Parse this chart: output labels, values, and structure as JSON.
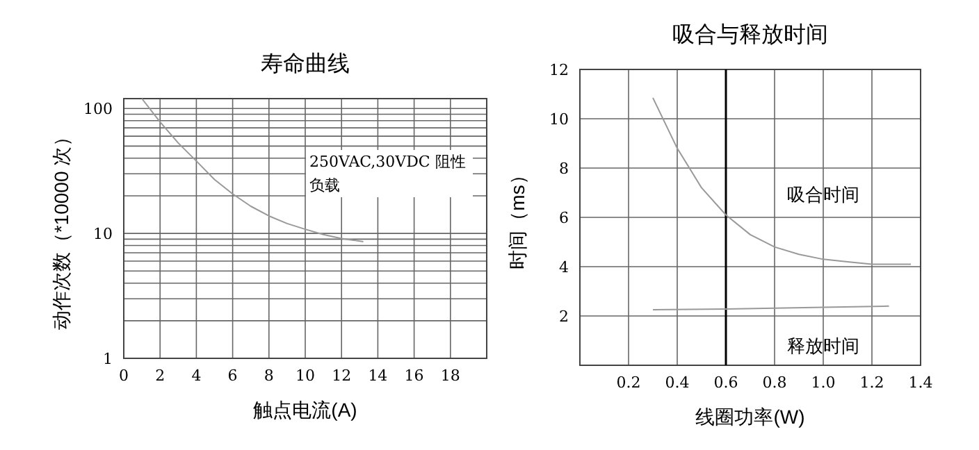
{
  "chart_data": [
    {
      "type": "line",
      "title": "寿命曲线",
      "xlabel": "触点电流(A)",
      "ylabel": "动作次数（*10000 次）",
      "log": "y",
      "grid": true,
      "xlim": [
        0,
        20
      ],
      "xticks": [
        0,
        2,
        4,
        6,
        8,
        10,
        12,
        14,
        16,
        18
      ],
      "ylim": [
        1,
        120
      ],
      "yticks": [
        1,
        10,
        100
      ],
      "annotations": [
        "250VAC,30VDC 阻性负载"
      ],
      "series": [
        {
          "color": "#999999",
          "x": [
            1,
            2,
            3,
            4,
            5,
            6,
            7,
            8,
            9,
            10,
            11,
            12,
            13.2
          ],
          "values": [
            120,
            78,
            53,
            38,
            27,
            20.7,
            16.5,
            13.8,
            12,
            10.8,
            9.8,
            9.1,
            8.6
          ]
        }
      ]
    },
    {
      "type": "line",
      "title": "吸合与释放时间",
      "xlabel": "线圈功率(W)",
      "ylabel": "时间（ms）",
      "grid": true,
      "xlim": [
        0,
        1.4
      ],
      "xticks": [
        {
          "value": 0.2,
          "label": "0.2"
        },
        {
          "value": 0.4,
          "label": "0.4"
        },
        {
          "value": 0.6,
          "label": "0.6"
        },
        {
          "value": 0.8,
          "label": "0.8"
        },
        {
          "value": 1.0,
          "label": "1.0"
        },
        {
          "value": 1.2,
          "label": "1.2"
        },
        {
          "value": 1.4,
          "label": "1.4"
        }
      ],
      "ylim": [
        0,
        12
      ],
      "yticks": [
        2,
        4,
        6,
        8,
        10,
        12
      ],
      "ref_lines": [
        {
          "axis": "x",
          "value": 0.6,
          "color": "#000000"
        }
      ],
      "series": [
        {
          "name": "吸合时间",
          "color": "#999999",
          "x": [
            0.3,
            0.4,
            0.5,
            0.6,
            0.7,
            0.8,
            0.9,
            1.0,
            1.1,
            1.2,
            1.36
          ],
          "values": [
            10.85,
            8.8,
            7.2,
            6.1,
            5.3,
            4.8,
            4.5,
            4.3,
            4.2,
            4.1,
            4.1
          ]
        },
        {
          "name": "释放时间",
          "color": "#999999",
          "x": [
            0.3,
            0.6,
            1.0,
            1.27
          ],
          "values": [
            2.25,
            2.28,
            2.35,
            2.4
          ]
        }
      ]
    }
  ]
}
